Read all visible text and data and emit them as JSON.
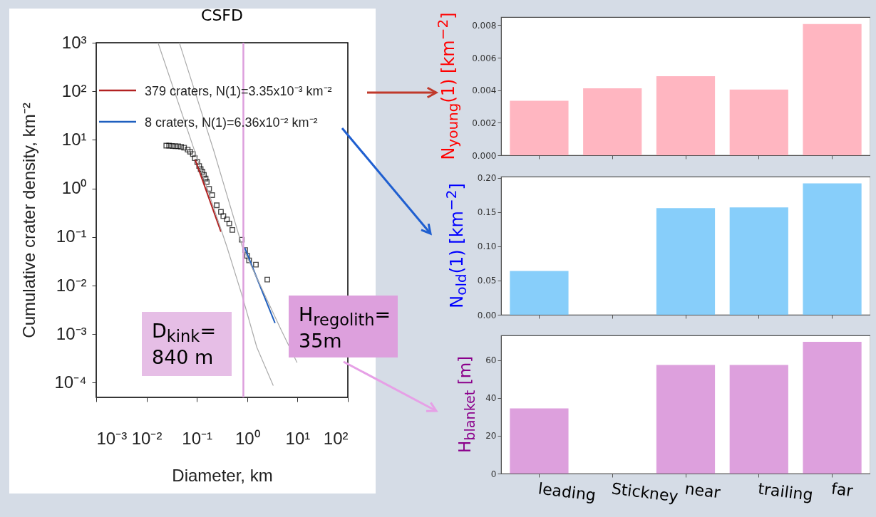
{
  "chart_data": [
    {
      "type": "scatter",
      "title": "CSFD",
      "xlabel": "Diameter, km",
      "ylabel": "Cumulative crater density, km⁻²",
      "log": "xy",
      "legend": "top left",
      "xlim": [
        0.001,
        100
      ],
      "ylim": [
        5e-05,
        1000
      ],
      "xticks": [
        {
          "value": 0.001,
          "label": "10⁻³"
        },
        {
          "value": 0.01,
          "label": "10⁻²"
        },
        {
          "value": 0.1,
          "label": "10⁻¹"
        },
        {
          "value": 1,
          "label": "10⁰"
        },
        {
          "value": 10,
          "label": "10¹"
        },
        {
          "value": 100,
          "label": "10²"
        }
      ],
      "yticks": [
        {
          "value": 0.0001,
          "label": "10⁻⁴"
        },
        {
          "value": 0.001,
          "label": "10⁻³"
        },
        {
          "value": 0.01,
          "label": "10⁻²"
        },
        {
          "value": 0.1,
          "label": "10⁻¹"
        },
        {
          "value": 1,
          "label": "10⁰"
        },
        {
          "value": 10,
          "label": "10¹"
        },
        {
          "value": 100,
          "label": "10²"
        },
        {
          "value": 1000,
          "label": "10³"
        }
      ],
      "series": [
        {
          "type": "scatter",
          "color": "#000000",
          "marker": "square",
          "x": [
            0.0247,
            0.0281,
            0.0324,
            0.0373,
            0.0425,
            0.0485,
            0.0557,
            0.0656,
            0.0733,
            0.0834,
            0.091,
            0.102,
            0.111,
            0.119,
            0.129,
            0.138,
            0.149,
            0.157,
            0.175,
            0.201,
            0.248,
            0.301,
            0.336,
            0.395,
            0.441,
            0.507,
            0.78,
            0.91,
            0.995,
            1.09,
            1.49,
            2.51
          ],
          "values": [
            7.6,
            7.6,
            7.5,
            7.4,
            7.4,
            7.2,
            6.9,
            6.3,
            5.7,
            5.1,
            4.2,
            3.5,
            2.9,
            2.5,
            2.2,
            1.9,
            1.6,
            1.36,
            0.98,
            0.73,
            0.45,
            0.33,
            0.27,
            0.23,
            0.19,
            0.14,
            0.088,
            0.054,
            0.041,
            0.033,
            0.027,
            0.0133
          ]
        },
        {
          "type": "line",
          "name": "379 craters, N(1)=3.35x10⁻³ km⁻²",
          "color": "#b22222",
          "x": [
            0.093,
            0.301
          ],
          "values": [
            3.85,
            0.129
          ]
        },
        {
          "type": "line",
          "name": "8 craters, N(1)=6.36x10⁻² km⁻²",
          "color": "#1f5fbf",
          "x": [
            0.89,
            3.57
          ],
          "values": [
            0.06,
            0.0017
          ]
        },
        {
          "type": "line",
          "color": "#aaaaaa",
          "x": [
            0.0169,
            0.1,
            0.395,
            0.8,
            1.55,
            3.3
          ],
          "values": [
            1000,
            4.3,
            0.063,
            0.006,
            0.00054,
            8.7e-05
          ]
        },
        {
          "type": "line",
          "color": "#aaaaaa",
          "x": [
            0.0449,
            0.217,
            0.8,
            4.6,
            9.8
          ],
          "values": [
            1000,
            5.96,
            0.063,
            0.0013,
            0.00026
          ]
        }
      ],
      "ref_lines": [
        {
          "axis": "x",
          "value": 0.84,
          "color": "#dda0dd"
        }
      ],
      "annotations": [
        "D$_{kink}$=\n840 m",
        "H$_{regolith}$=\n35m"
      ]
    },
    {
      "type": "bar",
      "ylabel": "N$_{young}$(1) [km$^{−2}$]",
      "categories": [
        null,
        null,
        null,
        null,
        null
      ],
      "values": [
        0.00335,
        0.00412,
        0.00486,
        0.00404,
        0.00807
      ],
      "color": "#ffb6c1",
      "ylim": [
        0,
        0.0085
      ],
      "yticks": [
        {
          "value": 0,
          "label": "0.000"
        },
        {
          "value": 0.002,
          "label": "0.002"
        },
        {
          "value": 0.004,
          "label": "0.004"
        },
        {
          "value": 0.006,
          "label": "0.006"
        },
        {
          "value": 0.008,
          "label": "0.008"
        }
      ],
      "tick_labels": "y"
    },
    {
      "type": "bar",
      "ylabel": "N$_{old}$(1) [km$^{−2}$]",
      "categories": [
        null,
        null,
        null,
        null,
        null
      ],
      "values": [
        0.064,
        null,
        0.156,
        0.157,
        0.192
      ],
      "color": "#87cefa",
      "ylim": [
        0,
        0.202
      ],
      "yticks": [
        {
          "value": 0,
          "label": "0.00"
        },
        {
          "value": 0.05,
          "label": "0.05"
        },
        {
          "value": 0.1,
          "label": "0.10"
        },
        {
          "value": 0.15,
          "label": "0.15"
        },
        {
          "value": 0.2,
          "label": "0.20"
        }
      ],
      "tick_labels": "y"
    },
    {
      "type": "bar",
      "ylabel": "H$_{blanket}$ [m]",
      "categories": [
        "leading",
        "Stickney",
        "near",
        "trailing",
        "far"
      ],
      "values": [
        34.4,
        null,
        57.4,
        57.4,
        69.6
      ],
      "color": "#dda0dd",
      "ylim": [
        0,
        73
      ],
      "yticks": [
        0,
        20,
        40,
        60
      ]
    }
  ]
}
